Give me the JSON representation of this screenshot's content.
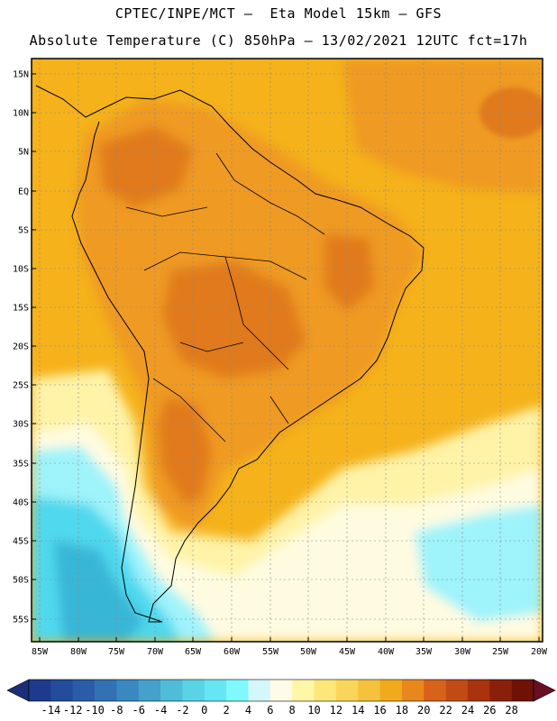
{
  "header": {
    "line1": "CPTEC/INPE/MCT –  Eta Model 15km – GFS",
    "line2": "Absolute Temperature (C) 850hPa – 13/02/2021 12UTC fct=17h"
  },
  "map": {
    "lat_labels": [
      "15N",
      "10N",
      "5N",
      "EQ",
      "5S",
      "10S",
      "15S",
      "20S",
      "25S",
      "30S",
      "35S",
      "40S",
      "45S",
      "50S",
      "55S"
    ],
    "lon_labels": [
      "85W",
      "80W",
      "75W",
      "70W",
      "65W",
      "60W",
      "55W",
      "50W",
      "45W",
      "40W",
      "35W",
      "30W",
      "25W",
      "20W"
    ],
    "field_colors": {
      "ocean_warm": "#f5b21a",
      "land_warm": "#ef9a22",
      "land_hot": "#e07a1c",
      "cool_yellow": "#fff3a8",
      "pale": "#fffbe0",
      "cyan_light": "#9ff3fb",
      "cyan": "#4fd8ee",
      "teal": "#39b6d6"
    }
  },
  "colorbar": {
    "labels": [
      "-14",
      "-12",
      "-10",
      "-8",
      "-6",
      "-4",
      "-2",
      "0",
      "2",
      "4",
      "6",
      "8",
      "10",
      "12",
      "14",
      "16",
      "18",
      "20",
      "22",
      "24",
      "26",
      "28"
    ],
    "colors": [
      "#1d3b8c",
      "#234c9c",
      "#2a5ca8",
      "#3271b4",
      "#3a88c0",
      "#45a0cc",
      "#4fbcd8",
      "#59d3e6",
      "#66e6f2",
      "#7ff8fe",
      "#d4f7fa",
      "#fffbe6",
      "#fff6a8",
      "#fde778",
      "#f9d65a",
      "#f4c23c",
      "#f0aa1c",
      "#e8881c",
      "#d8621a",
      "#c24a14",
      "#a8330e",
      "#8b200a",
      "#6e1206"
    ],
    "cap_left_color": "#1b2f78",
    "cap_right_color": "#6a0f22"
  }
}
